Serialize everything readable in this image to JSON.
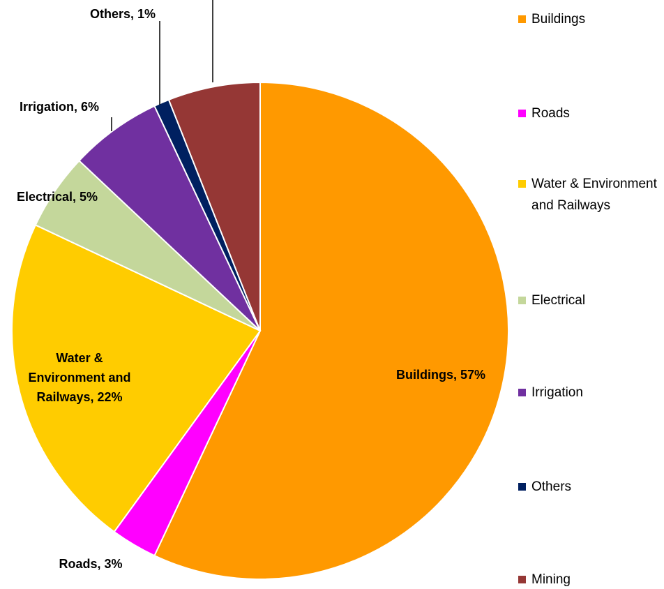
{
  "chart_data": {
    "type": "pie",
    "categories": [
      "Buildings",
      "Roads",
      "Water & Environment and Railways",
      "Electrical",
      "Irrigation",
      "Others",
      "Mining"
    ],
    "values": [
      57,
      3,
      22,
      5,
      6,
      1,
      6
    ],
    "value_labels": [
      "Buildings, 57%",
      "Roads, 3%",
      "Water & Environment and Railways, 22%",
      "Electrical, 5%",
      "Irrigation, 6%",
      "Others, 1%",
      null
    ],
    "colors": [
      "#ff9900",
      "#ff00ff",
      "#ffcc00",
      "#c4d79b",
      "#7030a0",
      "#002060",
      "#953735"
    ],
    "legend": "right"
  }
}
